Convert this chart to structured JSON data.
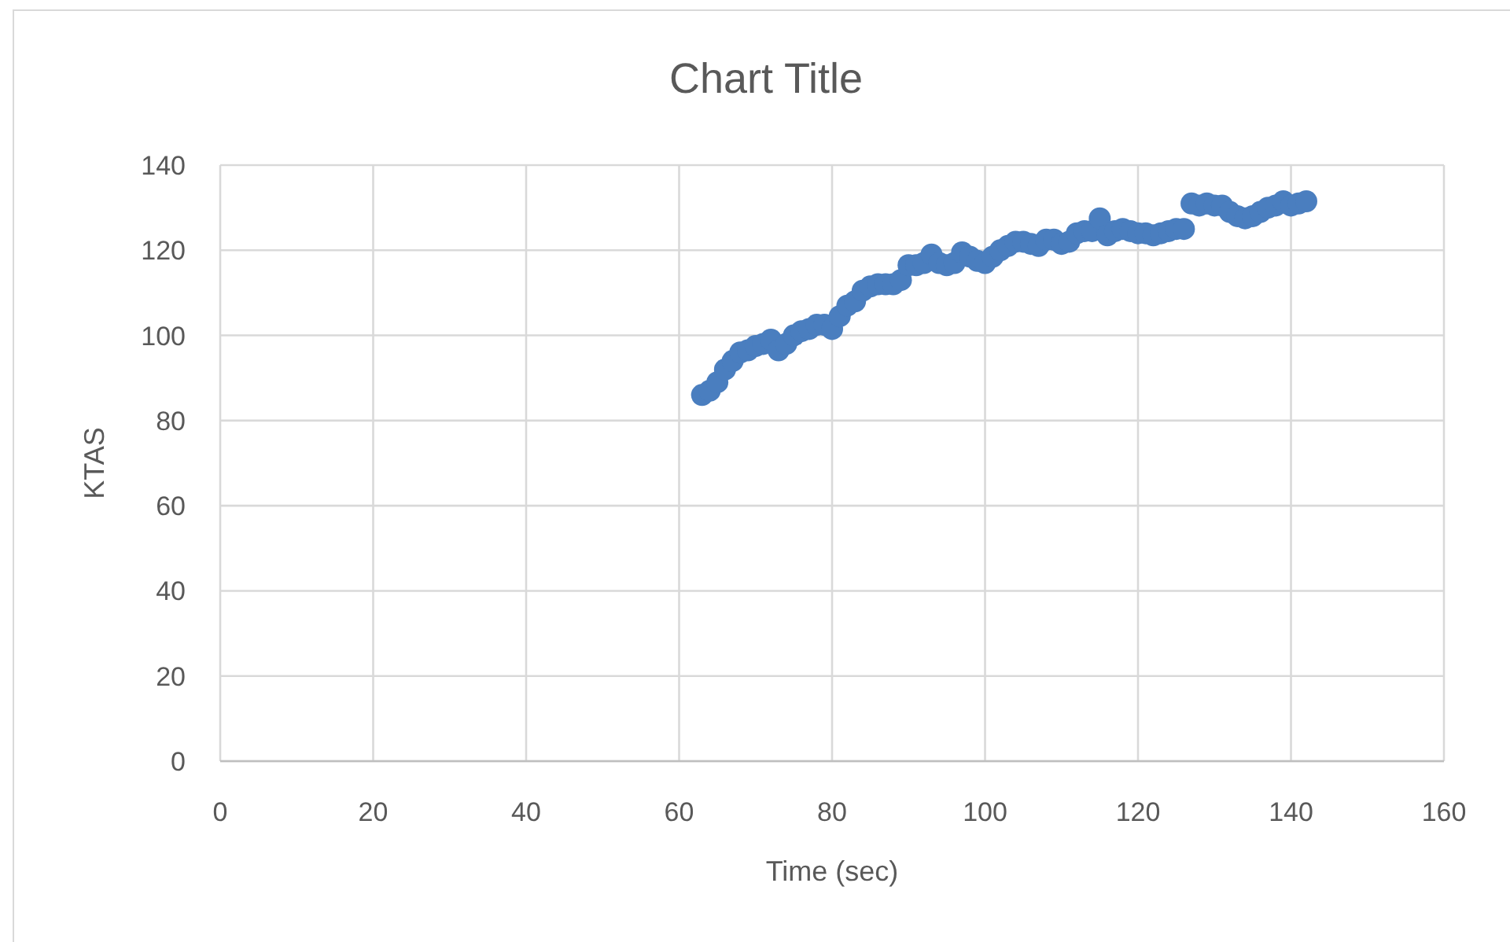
{
  "chart_data": {
    "type": "scatter",
    "title": "Chart Title",
    "xlabel": "Time (sec)",
    "ylabel": "KTAS",
    "x": [
      63,
      64,
      65,
      66,
      67,
      68,
      69,
      70,
      71,
      72,
      73,
      74,
      75,
      76,
      77,
      78,
      79,
      80,
      81,
      82,
      83,
      84,
      85,
      86,
      87,
      88,
      89,
      90,
      91,
      92,
      93,
      94,
      95,
      96,
      97,
      98,
      99,
      100,
      101,
      102,
      103,
      104,
      105,
      106,
      107,
      108,
      109,
      110,
      111,
      112,
      113,
      114,
      115,
      116,
      117,
      118,
      119,
      120,
      121,
      122,
      123,
      124,
      125,
      126,
      127,
      128,
      129,
      130,
      131,
      132,
      133,
      134,
      135,
      136,
      137,
      138,
      139,
      140,
      141,
      142
    ],
    "series": [
      {
        "color": "#4a7ebf",
        "values": [
          86,
          87,
          89,
          92,
          94,
          96,
          96.5,
          97.5,
          98,
          99,
          96.5,
          98,
          100,
          101,
          101.5,
          102.5,
          102.5,
          101.5,
          104.5,
          107,
          108,
          110.5,
          111.5,
          112,
          112,
          112,
          113,
          116.5,
          116.5,
          117,
          119,
          117,
          116.5,
          117,
          119.5,
          118.5,
          117.5,
          117,
          118.5,
          120,
          121,
          122,
          122,
          121.5,
          121,
          122.5,
          122.5,
          121.5,
          122,
          124,
          124.5,
          124.5,
          127.5,
          123.5,
          124.5,
          125,
          124.5,
          124,
          124,
          123.5,
          124,
          124.5,
          125,
          125,
          131,
          130.5,
          131,
          130.5,
          130.5,
          129,
          128,
          127.5,
          128,
          129,
          130,
          130.5,
          131.5,
          130.5,
          131,
          131.5
        ]
      }
    ],
    "xlim": [
      0,
      160
    ],
    "xticks": [
      0,
      20,
      40,
      60,
      80,
      100,
      120,
      140,
      160
    ],
    "ylim": [
      0,
      140
    ],
    "yticks": [
      0,
      20,
      40,
      60,
      80,
      100,
      120,
      140
    ],
    "grid": true,
    "marker": "circle"
  }
}
